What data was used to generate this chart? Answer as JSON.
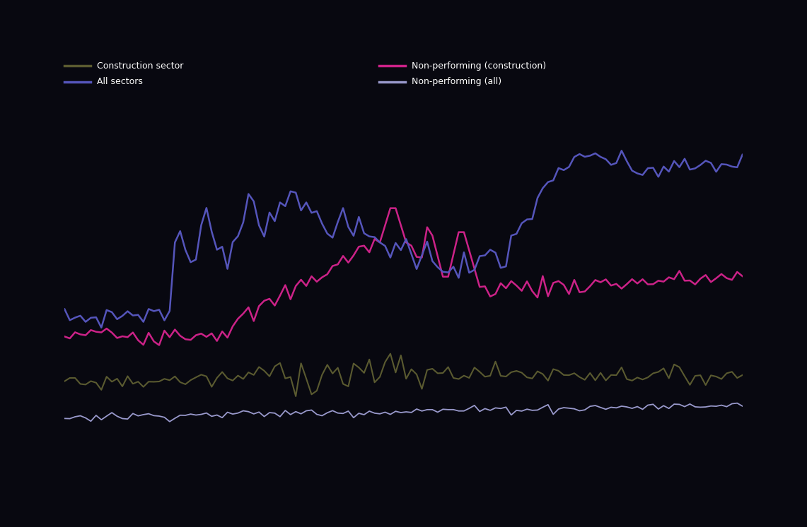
{
  "background_color": "#080810",
  "line_colors": {
    "olive": "#5a5a30",
    "blue": "#5555bb",
    "magenta": "#cc2288",
    "lavender": "#9999cc"
  },
  "legend_labels": {
    "olive": "Construction sector",
    "blue": "All sectors",
    "magenta": "Non-performing (construction)",
    "lavender": "Non-performing (all)"
  },
  "figsize": [
    11.41,
    7.46
  ],
  "dpi": 100
}
